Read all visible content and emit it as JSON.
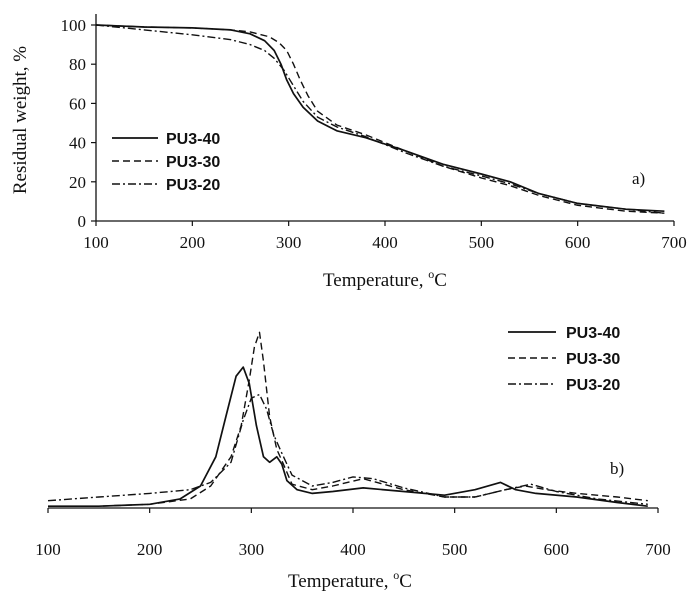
{
  "chart_data": [
    {
      "type": "line",
      "panel_label": "a)",
      "xlabel": "Temperature, ",
      "xlabel_sup": "o",
      "xlabel_unit": "C",
      "ylabel": "Residual weight, %",
      "xlim": [
        100,
        700
      ],
      "ylim": [
        0,
        100
      ],
      "xticks": [
        100,
        200,
        300,
        400,
        500,
        600,
        700
      ],
      "yticks": [
        0,
        20,
        40,
        60,
        80,
        100
      ],
      "legend_position": "center-left",
      "series": [
        {
          "name": "PU3-40",
          "dash": "solid",
          "x": [
            100,
            150,
            200,
            240,
            260,
            275,
            285,
            292,
            298,
            305,
            315,
            330,
            350,
            380,
            420,
            460,
            500,
            530,
            560,
            600,
            650,
            690
          ],
          "y": [
            100,
            99,
            98.5,
            97.5,
            95.5,
            92,
            87,
            80,
            72,
            65,
            58,
            51,
            46,
            42.5,
            36,
            29,
            24,
            20,
            14,
            9,
            6,
            5
          ]
        },
        {
          "name": "PU3-30",
          "dash": "dashed",
          "x": [
            100,
            150,
            200,
            240,
            260,
            280,
            290,
            298,
            305,
            312,
            320,
            330,
            350,
            380,
            420,
            460,
            500,
            530,
            560,
            600,
            650,
            690
          ],
          "y": [
            100,
            99,
            98.5,
            97.5,
            96.5,
            94,
            91,
            87,
            80,
            72,
            64,
            56,
            49,
            44,
            36,
            28,
            22,
            18,
            13,
            8,
            5,
            4
          ]
        },
        {
          "name": "PU3-20",
          "dash": "dashdot",
          "x": [
            100,
            150,
            200,
            240,
            260,
            275,
            285,
            295,
            305,
            315,
            330,
            350,
            380,
            420,
            460,
            500,
            530,
            560,
            600,
            650,
            690
          ],
          "y": [
            100,
            97.5,
            95,
            92.5,
            90,
            87,
            83,
            77,
            69,
            61,
            53,
            48,
            43,
            35,
            28,
            23,
            19,
            14,
            9,
            6,
            4
          ]
        }
      ]
    },
    {
      "type": "line",
      "panel_label": "b)",
      "xlabel": "Temperature, ",
      "xlabel_sup": "o",
      "xlabel_unit": "C",
      "ylabel": "",
      "xlim": [
        100,
        700
      ],
      "ylim": [
        0,
        1
      ],
      "xticks": [
        100,
        200,
        300,
        400,
        500,
        600,
        700
      ],
      "legend_position": "top-right",
      "series": [
        {
          "name": "PU3-40",
          "dash": "solid",
          "x": [
            100,
            150,
            200,
            230,
            250,
            265,
            275,
            285,
            292,
            298,
            305,
            312,
            318,
            325,
            330,
            335,
            345,
            360,
            380,
            410,
            450,
            490,
            520,
            545,
            560,
            580,
            620,
            660,
            690
          ],
          "y": [
            0.01,
            0.01,
            0.02,
            0.05,
            0.12,
            0.28,
            0.5,
            0.72,
            0.77,
            0.68,
            0.45,
            0.28,
            0.25,
            0.28,
            0.24,
            0.15,
            0.1,
            0.08,
            0.09,
            0.11,
            0.09,
            0.07,
            0.1,
            0.14,
            0.1,
            0.08,
            0.06,
            0.03,
            0.01
          ]
        },
        {
          "name": "PU3-30",
          "dash": "dashed",
          "x": [
            100,
            150,
            200,
            240,
            260,
            280,
            290,
            298,
            303,
            308,
            312,
            318,
            325,
            330,
            340,
            360,
            380,
            410,
            450,
            490,
            520,
            550,
            570,
            590,
            620,
            660,
            690
          ],
          "y": [
            0.01,
            0.01,
            0.02,
            0.05,
            0.12,
            0.28,
            0.45,
            0.7,
            0.88,
            0.96,
            0.8,
            0.5,
            0.32,
            0.26,
            0.13,
            0.1,
            0.12,
            0.16,
            0.1,
            0.06,
            0.06,
            0.1,
            0.12,
            0.1,
            0.08,
            0.06,
            0.04
          ]
        },
        {
          "name": "PU3-20",
          "dash": "dashdot",
          "x": [
            100,
            150,
            200,
            240,
            260,
            280,
            292,
            300,
            308,
            315,
            322,
            330,
            340,
            360,
            380,
            400,
            420,
            450,
            490,
            520,
            550,
            575,
            600,
            640,
            690
          ],
          "y": [
            0.04,
            0.06,
            0.08,
            0.1,
            0.14,
            0.25,
            0.48,
            0.6,
            0.62,
            0.54,
            0.4,
            0.3,
            0.18,
            0.12,
            0.14,
            0.17,
            0.16,
            0.11,
            0.06,
            0.06,
            0.1,
            0.13,
            0.09,
            0.05,
            0.02
          ]
        }
      ]
    }
  ]
}
